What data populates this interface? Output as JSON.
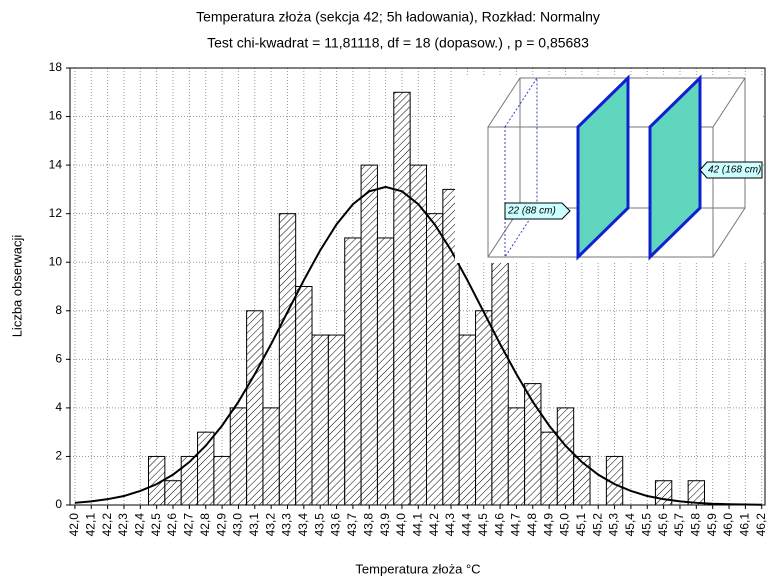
{
  "chart_data": {
    "type": "histogram",
    "title": "Temperatura złoża (sekcja 42; 5h ładowania), Rozkład: Normalny",
    "subtitle": "Test chi-kwadrat = 11,81118, df = 18 (dopasow.) , p = 0,85683",
    "x_label": "Temperatura złoża °C",
    "y_label": "Liczba obserwacji",
    "bins": [
      41.95,
      42.05,
      42.15,
      42.25,
      42.35,
      42.45,
      42.55,
      42.65,
      42.75,
      42.85,
      42.95,
      43.05,
      43.15,
      43.25,
      43.35,
      43.45,
      43.55,
      43.65,
      43.75,
      43.85,
      43.95,
      44.05,
      44.15,
      44.25,
      44.35,
      44.45,
      44.55,
      44.65,
      44.75,
      44.85,
      44.95,
      45.05,
      45.15,
      45.25,
      45.35,
      45.45,
      45.55,
      45.65,
      45.75,
      45.85,
      45.95,
      46.05,
      46.15,
      46.25
    ],
    "values": [
      0,
      0,
      0,
      0,
      0,
      2,
      1,
      2,
      3,
      2,
      4,
      8,
      4,
      12,
      9,
      7,
      7,
      11,
      14,
      11,
      17,
      14,
      12,
      13,
      7,
      8,
      10,
      4,
      5,
      3,
      4,
      2,
      0,
      2,
      0,
      0,
      1,
      0,
      1,
      0,
      0,
      0,
      0
    ],
    "color": "#000000",
    "curve": {
      "x": [
        42.0,
        42.1,
        42.2,
        42.3,
        42.4,
        42.5,
        42.6,
        42.7,
        42.8,
        42.9,
        43.0,
        43.1,
        43.2,
        43.3,
        43.4,
        43.5,
        43.6,
        43.7,
        43.8,
        43.9,
        44.0,
        44.1,
        44.2,
        44.3,
        44.4,
        44.5,
        44.6,
        44.7,
        44.8,
        44.9,
        45.0,
        45.1,
        45.2,
        45.3,
        45.4,
        45.5,
        45.6,
        45.7,
        45.8,
        45.9,
        46.0,
        46.1,
        46.2
      ],
      "values": [
        0.09,
        0.15,
        0.24,
        0.37,
        0.58,
        0.86,
        1.25,
        1.77,
        2.44,
        3.27,
        4.25,
        5.39,
        6.63,
        7.95,
        9.26,
        10.49,
        11.56,
        12.39,
        12.92,
        13.1,
        12.92,
        12.39,
        11.56,
        10.49,
        9.26,
        7.95,
        6.63,
        5.39,
        4.25,
        3.27,
        2.44,
        1.77,
        1.25,
        0.86,
        0.58,
        0.37,
        0.24,
        0.15,
        0.09,
        0.05,
        0.03,
        0.02,
        0.01
      ],
      "color": "#000000"
    },
    "xlim": [
      41.97,
      46.22
    ],
    "ylim": [
      0,
      18
    ],
    "yticks": [
      0,
      2,
      4,
      6,
      8,
      10,
      12,
      14,
      16,
      18
    ],
    "xticks": [
      {
        "value": 42.0,
        "label": "42,0"
      },
      {
        "value": 42.1,
        "label": "42,1"
      },
      {
        "value": 42.2,
        "label": "42,2"
      },
      {
        "value": 42.3,
        "label": "42,3"
      },
      {
        "value": 42.4,
        "label": "42,4"
      },
      {
        "value": 42.5,
        "label": "42,5"
      },
      {
        "value": 42.6,
        "label": "42,6"
      },
      {
        "value": 42.7,
        "label": "42,7"
      },
      {
        "value": 42.8,
        "label": "42,8"
      },
      {
        "value": 42.9,
        "label": "42,9"
      },
      {
        "value": 43.0,
        "label": "43,0"
      },
      {
        "value": 43.1,
        "label": "43,1"
      },
      {
        "value": 43.2,
        "label": "43,2"
      },
      {
        "value": 43.3,
        "label": "43,3"
      },
      {
        "value": 43.4,
        "label": "43,4"
      },
      {
        "value": 43.5,
        "label": "43,5"
      },
      {
        "value": 43.6,
        "label": "43,6"
      },
      {
        "value": 43.7,
        "label": "43,7"
      },
      {
        "value": 43.8,
        "label": "43,8"
      },
      {
        "value": 43.9,
        "label": "43,9"
      },
      {
        "value": 44.0,
        "label": "44,0"
      },
      {
        "value": 44.1,
        "label": "44,1"
      },
      {
        "value": 44.2,
        "label": "44,2"
      },
      {
        "value": 44.3,
        "label": "44,3"
      },
      {
        "value": 44.4,
        "label": "44,4"
      },
      {
        "value": 44.5,
        "label": "44,5"
      },
      {
        "value": 44.6,
        "label": "44,6"
      },
      {
        "value": 44.7,
        "label": "44,7"
      },
      {
        "value": 44.8,
        "label": "44,8"
      },
      {
        "value": 44.9,
        "label": "44,9"
      },
      {
        "value": 45.0,
        "label": "45,0"
      },
      {
        "value": 45.1,
        "label": "45,1"
      },
      {
        "value": 45.2,
        "label": "45,2"
      },
      {
        "value": 45.3,
        "label": "45,3"
      },
      {
        "value": 45.4,
        "label": "45,4"
      },
      {
        "value": 45.5,
        "label": "45,5"
      },
      {
        "value": 45.6,
        "label": "45,6"
      },
      {
        "value": 45.7,
        "label": "45,7"
      },
      {
        "value": 45.8,
        "label": "45,8"
      },
      {
        "value": 45.9,
        "label": "45,9"
      },
      {
        "value": 46.0,
        "label": "46,0"
      },
      {
        "value": 46.1,
        "label": "46,1"
      },
      {
        "value": 46.2,
        "label": "46,2"
      }
    ],
    "grid": true,
    "inset": {
      "labels": [
        "22 (88 cm)",
        "42 (168 cm)"
      ]
    }
  }
}
